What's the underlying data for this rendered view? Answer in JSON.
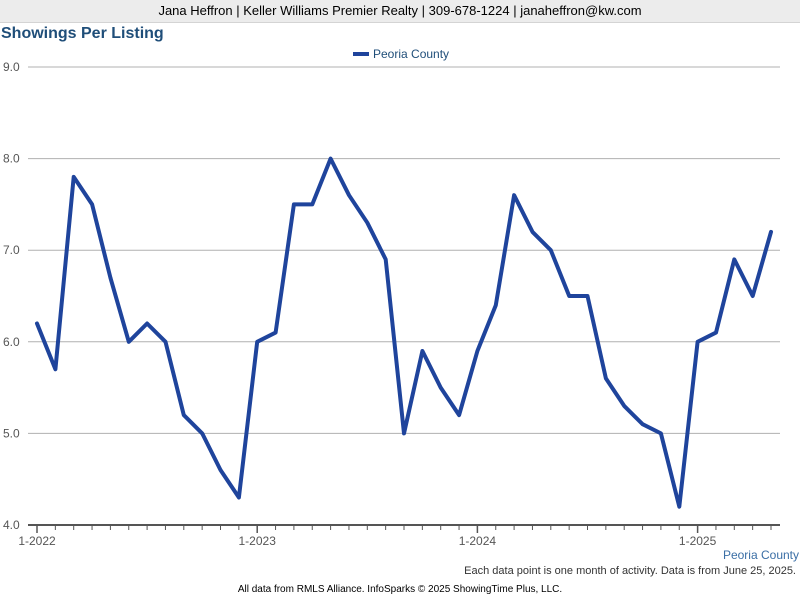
{
  "header": {
    "contact_line": "Jana Heffron | Keller Williams Premier Realty | 309-678-1224 | janaheffron@kw.com"
  },
  "chart_data": {
    "type": "line",
    "title": "Showings Per Listing",
    "xlabel": "",
    "ylabel": "",
    "ylim": [
      4.0,
      9.0
    ],
    "y_ticks": [
      "9.0",
      "8.0",
      "7.0",
      "6.0",
      "5.0",
      "4.0"
    ],
    "x_tick_labels": [
      "1-2022",
      "1-2023",
      "1-2024",
      "1-2025"
    ],
    "x_start": "2022-01",
    "x": [
      "2022-01",
      "2022-02",
      "2022-03",
      "2022-04",
      "2022-05",
      "2022-06",
      "2022-07",
      "2022-08",
      "2022-09",
      "2022-10",
      "2022-11",
      "2022-12",
      "2023-01",
      "2023-02",
      "2023-03",
      "2023-04",
      "2023-05",
      "2023-06",
      "2023-07",
      "2023-08",
      "2023-09",
      "2023-10",
      "2023-11",
      "2023-12",
      "2024-01",
      "2024-02",
      "2024-03",
      "2024-04",
      "2024-05",
      "2024-06",
      "2024-07",
      "2024-08",
      "2024-09",
      "2024-10",
      "2024-11",
      "2024-12",
      "2025-01",
      "2025-02",
      "2025-03",
      "2025-04",
      "2025-05"
    ],
    "series": [
      {
        "name": "Peoria County",
        "color": "#1f449c",
        "values": [
          6.2,
          5.7,
          7.8,
          7.5,
          6.7,
          6.0,
          6.2,
          6.0,
          5.2,
          5.0,
          4.6,
          4.3,
          6.0,
          6.1,
          7.5,
          7.5,
          8.0,
          7.6,
          7.3,
          6.9,
          5.0,
          5.9,
          5.5,
          5.2,
          5.9,
          6.4,
          7.6,
          7.2,
          7.0,
          6.5,
          6.5,
          5.6,
          5.3,
          5.1,
          5.0,
          4.2,
          6.0,
          6.1,
          6.9,
          6.5,
          7.2
        ]
      }
    ],
    "grid": true,
    "legend_position": "top-center"
  },
  "footer": {
    "region_label": "Peoria County",
    "note": "Each data point is one month of activity. Data is from June 25, 2025.",
    "credit": "All data from RMLS Alliance. InfoSparks © 2025 ShowingTime Plus, LLC."
  }
}
